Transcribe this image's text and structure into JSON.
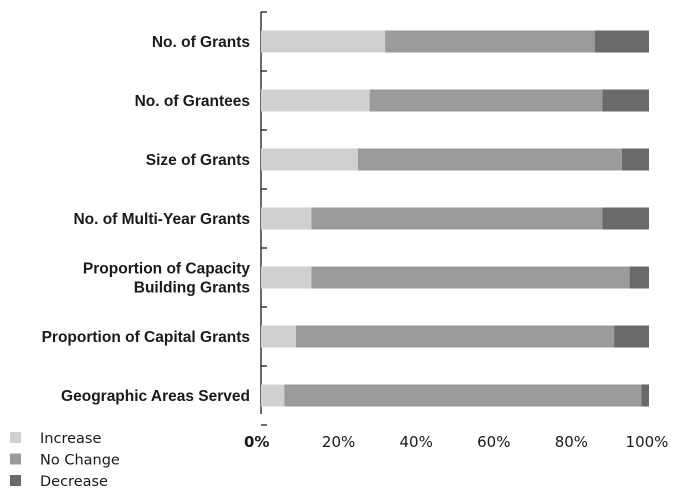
{
  "chart_data": {
    "type": "bar",
    "orientation": "horizontal",
    "stacked": true,
    "categories": [
      [
        "No. of Grants"
      ],
      [
        "No. of Grantees"
      ],
      [
        "Size of Grants"
      ],
      [
        "No. of Multi-Year Grants"
      ],
      [
        "Proportion of Capacity",
        "Building Grants"
      ],
      [
        "Proportion of Capital Grants"
      ],
      [
        "Geographic Areas Served"
      ]
    ],
    "series": [
      {
        "name": "Increase",
        "color": "#d0d0d0",
        "values": [
          32,
          28,
          25,
          13,
          13,
          9,
          6
        ]
      },
      {
        "name": "No Change",
        "color": "#9b9b9b",
        "values": [
          54,
          60,
          68,
          75,
          82,
          82,
          92
        ]
      },
      {
        "name": "Decrease",
        "color": "#6a6a6a",
        "values": [
          14,
          12,
          7,
          12,
          5,
          9,
          2
        ]
      }
    ],
    "xlim": [
      0,
      100
    ],
    "x_ticks": [
      "0%",
      "20%",
      "40%",
      "60%",
      "80%",
      "100%"
    ],
    "grid": false,
    "legend_position": "bottom-left"
  }
}
